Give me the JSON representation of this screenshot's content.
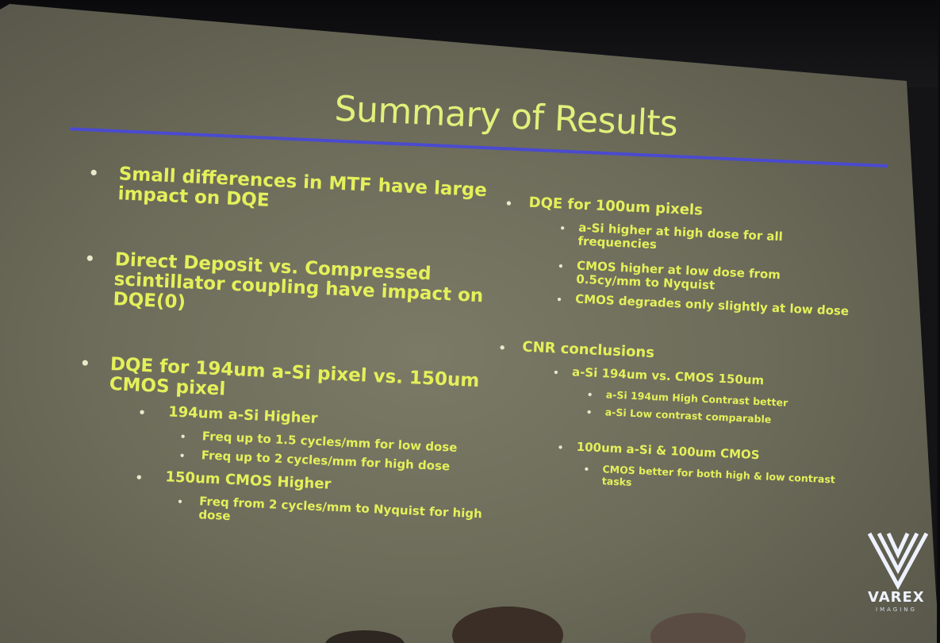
{
  "slide": {
    "title": "Summary of Results",
    "left": [
      {
        "level": 1,
        "lines": [
          "Small differences in MTF have large",
          "impact on DQE"
        ]
      },
      {
        "level": 1,
        "lines": [
          "Direct Deposit vs. Compressed",
          "scintillator coupling have impact on",
          "DQE(0)"
        ]
      },
      {
        "level": 1,
        "lines": [
          "DQE  for 194um a-Si pixel vs. 150um",
          "CMOS pixel"
        ]
      },
      {
        "level": 2,
        "lines": [
          "194um a-Si Higher"
        ]
      },
      {
        "level": 3,
        "lines": [
          "Freq up to 1.5 cycles/mm for low dose"
        ]
      },
      {
        "level": 3,
        "lines": [
          "Freq up to 2 cycles/mm for high dose"
        ]
      },
      {
        "level": 2,
        "lines": [
          "150um CMOS Higher"
        ]
      },
      {
        "level": 3,
        "lines": [
          "Freq from 2 cycles/mm  to Nyquist for high",
          "dose"
        ]
      }
    ],
    "right": [
      {
        "level": 1,
        "lines": [
          "DQE  for 100um pixels"
        ]
      },
      {
        "level": 2,
        "lines": [
          "a-Si higher at high dose for all",
          "frequencies"
        ]
      },
      {
        "level": 2,
        "lines": [
          "CMOS higher at low dose from",
          "0.5cy/mm to Nyquist"
        ]
      },
      {
        "level": 2,
        "lines": [
          "CMOS degrades only slightly at low dose"
        ]
      },
      {
        "level": 1,
        "lines": [
          "CNR conclusions"
        ]
      },
      {
        "level": 2,
        "lines": [
          "a-Si 194um vs. CMOS 150um"
        ]
      },
      {
        "level": 3,
        "lines": [
          "a-Si 194um High Contrast better"
        ]
      },
      {
        "level": 3,
        "lines": [
          "a-Si Low contrast comparable"
        ]
      },
      {
        "level": 2,
        "lines": [
          "100um a-Si & 100um CMOS"
        ]
      },
      {
        "level": 3,
        "lines": [
          "CMOS better for both high & low contrast",
          "tasks"
        ]
      }
    ],
    "logo": {
      "name": "VAREX",
      "subtitle": "IMAGING",
      "icon": "varex-logo-icon"
    },
    "colors": {
      "text": "#e4f05a",
      "title": "#e2f07a",
      "rule": "#4a4ad0",
      "screen": "#6d6c5a",
      "bullet": "#e8eacb"
    }
  }
}
